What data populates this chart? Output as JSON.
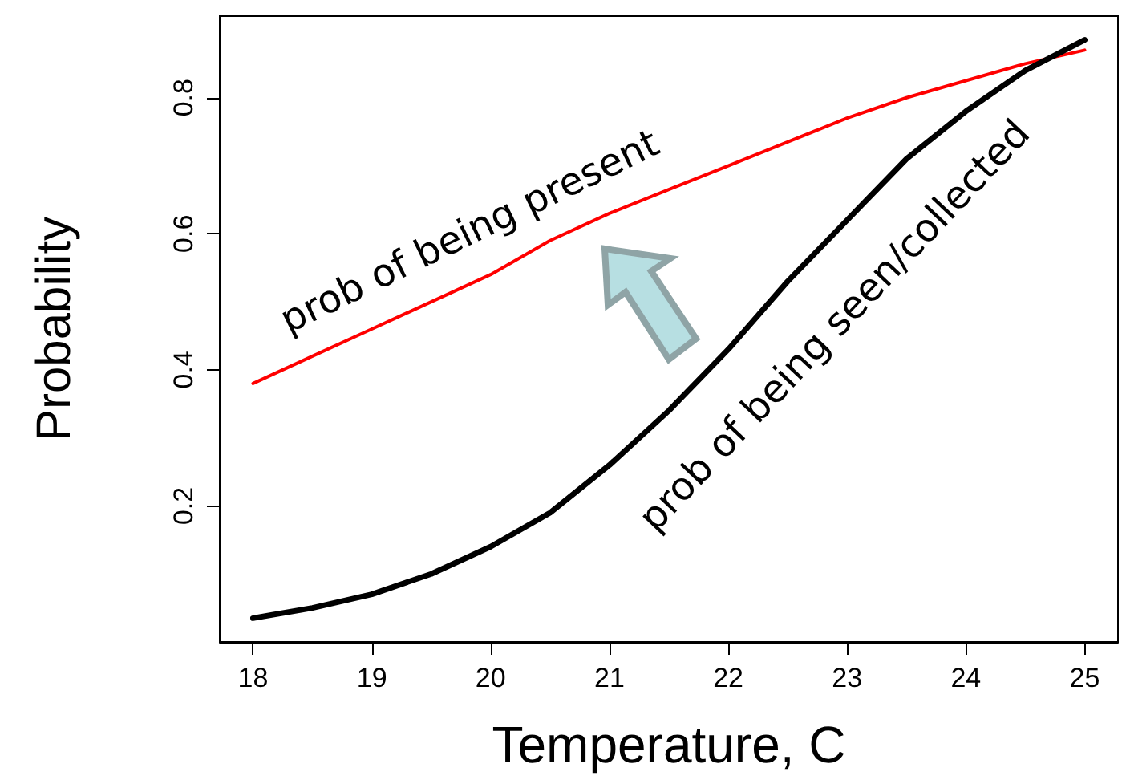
{
  "chart_data": {
    "type": "line",
    "xlabel": "Temperature, C",
    "ylabel": "Probability",
    "x": [
      18,
      18.5,
      19,
      19.5,
      20,
      20.5,
      21,
      21.5,
      22,
      22.5,
      23,
      23.5,
      24,
      24.5,
      25
    ],
    "series": [
      {
        "name": "prob of being present",
        "color": "#ff0000",
        "values": [
          0.38,
          0.42,
          0.46,
          0.5,
          0.54,
          0.59,
          0.63,
          0.665,
          0.7,
          0.735,
          0.77,
          0.8,
          0.825,
          0.85,
          0.87
        ]
      },
      {
        "name": "prob of being seen/collected",
        "color": "#000000",
        "values": [
          0.035,
          0.05,
          0.07,
          0.1,
          0.14,
          0.19,
          0.26,
          0.34,
          0.43,
          0.53,
          0.62,
          0.71,
          0.78,
          0.84,
          0.885
        ]
      }
    ],
    "xlim": [
      17.72,
      25.28
    ],
    "xticks": [
      18,
      19,
      20,
      21,
      22,
      23,
      24,
      25
    ],
    "ylim": [
      0,
      0.92
    ],
    "yticks": [
      0.2,
      0.4,
      0.6,
      0.8
    ],
    "grid": false,
    "legend": false,
    "marker": "none",
    "line_style": "solid"
  }
}
